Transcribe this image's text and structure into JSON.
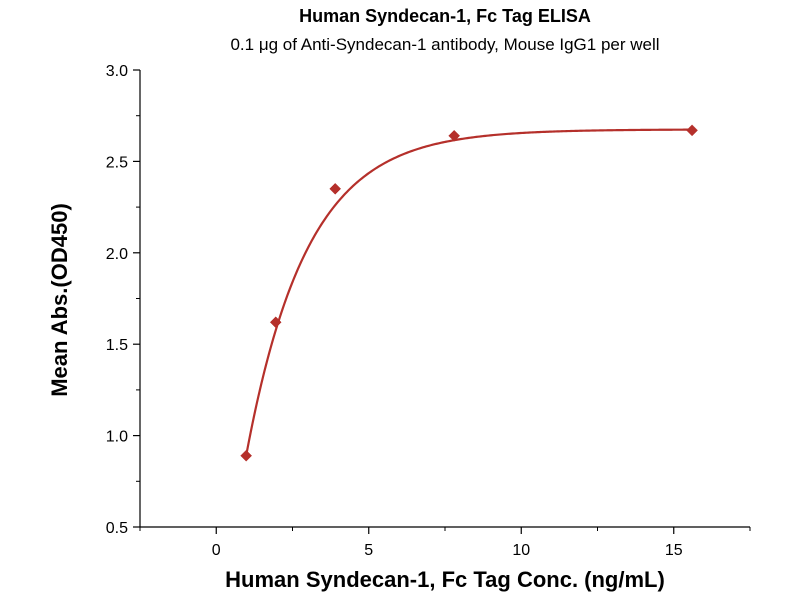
{
  "chart_data": {
    "type": "scatter",
    "title": "Human Syndecan-1, Fc Tag ELISA",
    "subtitle": "0.1 μg of Anti-Syndecan-1 antibody, Mouse IgG1 per well",
    "xlabel": "Human Syndecan-1, Fc Tag Conc. (ng/mL)",
    "ylabel": "Mean Abs.(OD450)",
    "xlim": [
      -2.5,
      17.5
    ],
    "ylim": [
      0.5,
      3.0
    ],
    "x_ticks": [
      0,
      5,
      10,
      15
    ],
    "y_ticks": [
      0.5,
      1.0,
      1.5,
      2.0,
      2.5,
      3.0
    ],
    "y_tick_labels": [
      "0.5",
      "1.0",
      "1.5",
      "2.0",
      "2.5",
      "3.0"
    ],
    "series": [
      {
        "x": [
          0.98,
          1.95,
          3.9,
          7.8,
          15.6
        ],
        "y": [
          0.89,
          1.62,
          2.35,
          2.64,
          2.67
        ],
        "color": "#b5302b",
        "marker": "diamond",
        "fit": "curve"
      }
    ],
    "grid": false,
    "legend": "none"
  }
}
